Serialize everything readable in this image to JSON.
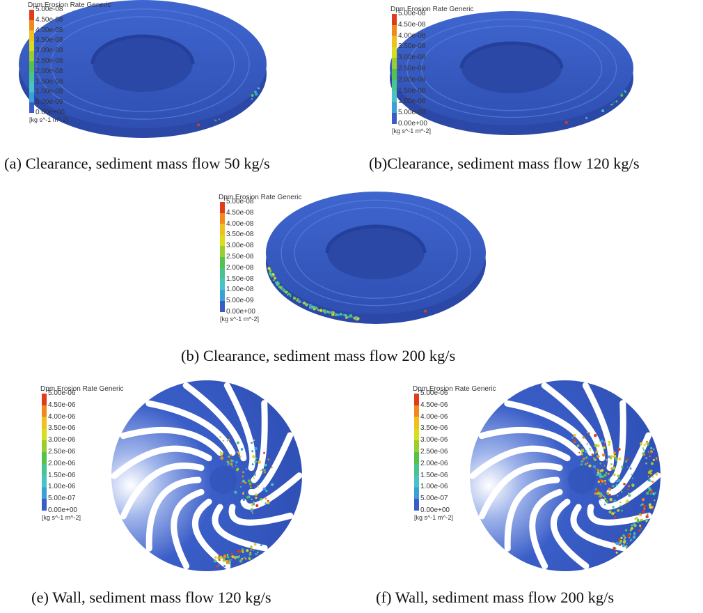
{
  "legend_colors": [
    "#3b5cc6",
    "#3aa0d8",
    "#49c4c6",
    "#49c490",
    "#55c24d",
    "#9ccd2e",
    "#d8dd1c",
    "#f0c020",
    "#f08a1e",
    "#e03c1c"
  ],
  "clearance_legend": {
    "title": "Dpm Erosion Rate Generic",
    "ticks": [
      "5.00e-08",
      "4.50e-08",
      "4.00e-08",
      "3.50e-08",
      "3.00e-08",
      "2.50e-08",
      "2.00e-08",
      "1.50e-08",
      "1.00e-08",
      "5.00e-09",
      "0.00e+00"
    ],
    "unit": "[kg s^-1 m^-2]"
  },
  "wall_legend": {
    "title": "Dpm Erosion Rate Generic",
    "ticks": [
      "5.00e-06",
      "4.50e-06",
      "4.00e-06",
      "3.50e-06",
      "3.00e-06",
      "2.50e-06",
      "2.00e-06",
      "1.50e-06",
      "1.00e-06",
      "5.00e-07",
      "0.00e+00"
    ],
    "unit": "[kg s^-1 m^-2]"
  },
  "captions": {
    "a": "(a) Clearance, sediment mass flow 50 kg/s",
    "b": "(b)Clearance, sediment mass flow 120 kg/s",
    "c": "(b) Clearance, sediment mass flow 200 kg/s",
    "e": "(e) Wall, sediment mass flow 120 kg/s",
    "f": "(f) Wall, sediment mass flow 200 kg/s"
  }
}
